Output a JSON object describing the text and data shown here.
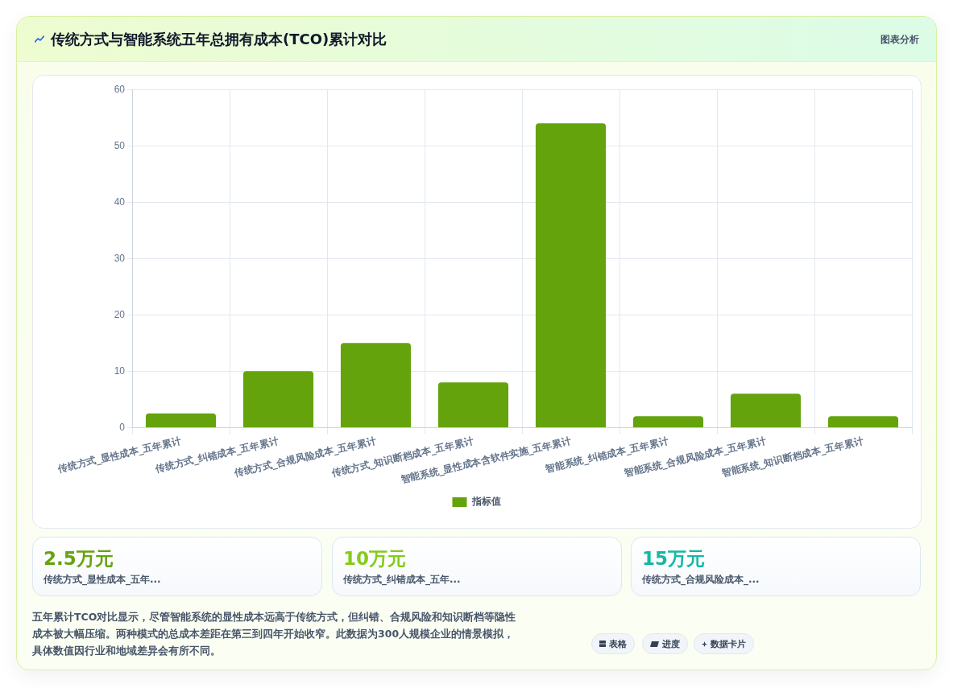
{
  "chart_data": {
    "type": "bar",
    "title": "传统方式与智能系统五年总拥有成本(TCO)累计对比",
    "categories": [
      "传统方式_显性成本_五年累计",
      "传统方式_纠错成本_五年累计",
      "传统方式_合规风险成本_五年累计",
      "传统方式_知识断档成本_五年累计",
      "智能系统_显性成本含软件实施_五年累计",
      "智能系统_纠错成本_五年累计",
      "智能系统_合规风险成本_五年累计",
      "智能系统_知识断档成本_五年累计"
    ],
    "series": [
      {
        "name": "指标值",
        "color": "#65a30d",
        "values": [
          2.5,
          10,
          15,
          8,
          54,
          2,
          6,
          2
        ]
      }
    ],
    "ylim": [
      0,
      60
    ],
    "yticks": [
      0,
      10,
      20,
      30,
      40,
      50,
      60
    ],
    "grid": true,
    "legend": "bottom",
    "annotations": [
      "图表分析",
      "2.5万元",
      "传统方式_显性成本_五年...",
      "10万元",
      "传统方式_纠错成本_五年...",
      "15万元",
      "传统方式_合规风险成本_...",
      "五年累计TCO对比显示，尽管智能系统的显性成本远高于传统方式，但纠错、合规风险和知识断档等隐性成本被大幅压缩。两种模式的总成本差距在第三到四年开始收窄。此数据为300人规模企业的情景模拟，具体数值因行业和地域差异会有所不同。",
      "表格",
      "进度",
      "数据卡片"
    ]
  }
}
